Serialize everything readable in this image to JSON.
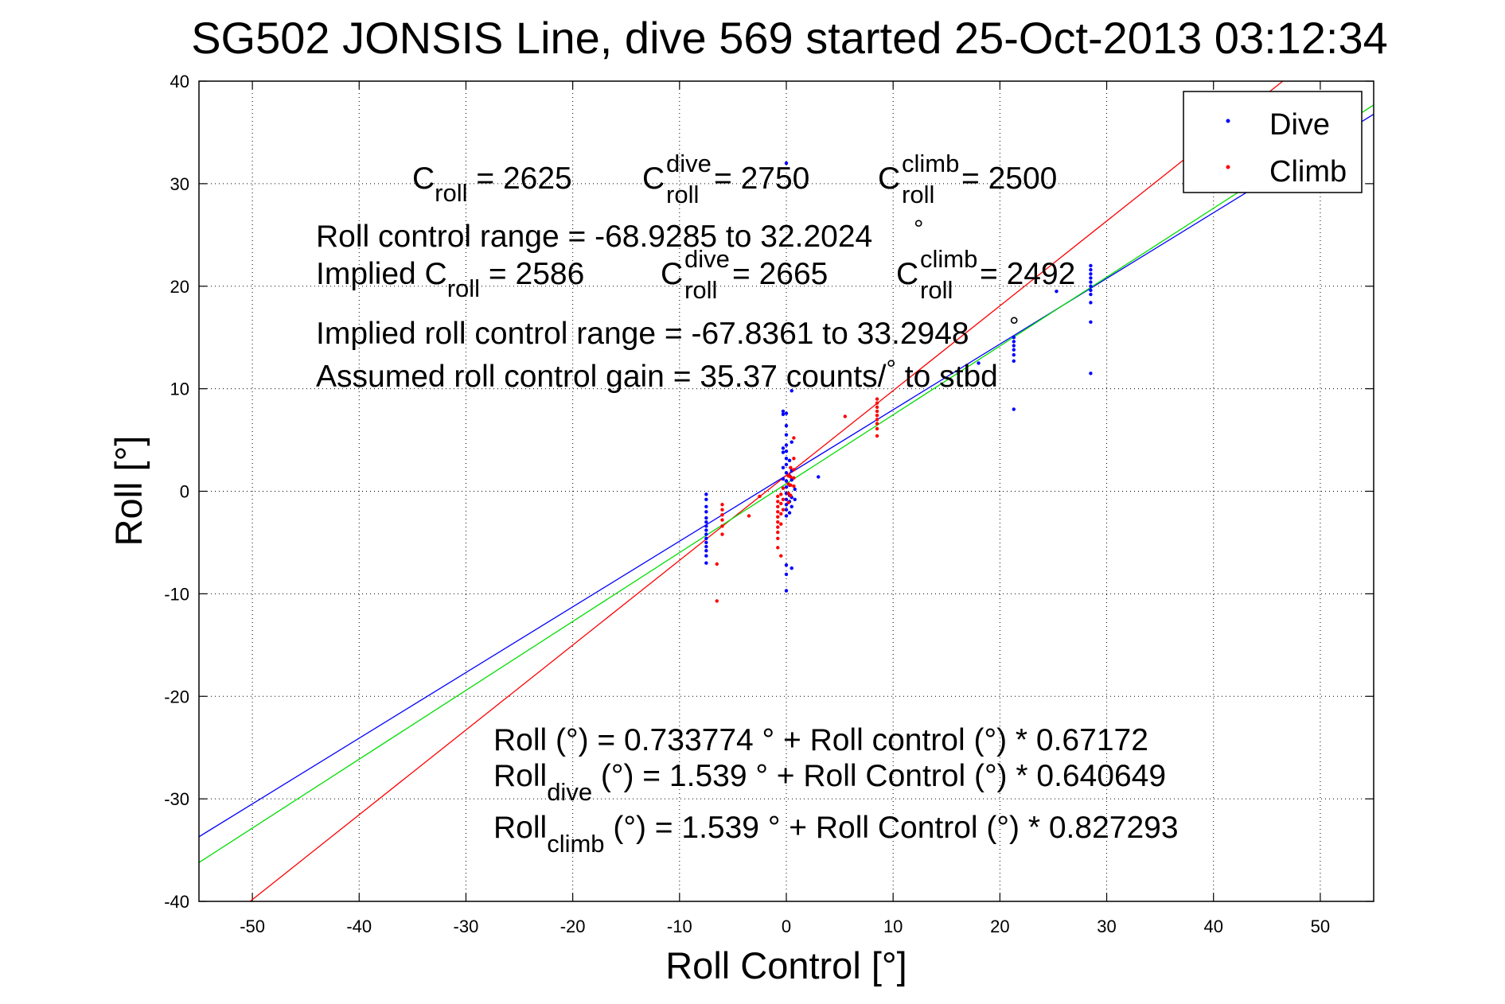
{
  "chart_data": {
    "type": "scatter",
    "title": "SG502 JONSIS Line, dive 569 started 25-Oct-2013 03:12:34",
    "xlabel": "Roll Control [°]",
    "ylabel": "Roll [°]",
    "xlim": [
      -55,
      55
    ],
    "ylim": [
      -40,
      40
    ],
    "xticks": [
      -50,
      -40,
      -30,
      -20,
      -10,
      0,
      10,
      20,
      30,
      40,
      50
    ],
    "yticks": [
      -40,
      -30,
      -20,
      -10,
      0,
      10,
      20,
      30,
      40
    ],
    "xtick_labels": [
      "-50",
      "-40",
      "-30",
      "-20",
      "-10",
      "0",
      "10",
      "20",
      "30",
      "40",
      "50"
    ],
    "ytick_labels": [
      "-40",
      "-30",
      "-20",
      "-10",
      "0",
      "10",
      "20",
      "30",
      "40"
    ],
    "grid": true,
    "legend": {
      "placement": "top-right",
      "entries": [
        "Dive",
        "Climb"
      ]
    },
    "colors": {
      "dive": "#0000ff",
      "climb": "#ff0000",
      "fit_all": "#00dd00"
    },
    "series": [
      {
        "name": "Dive",
        "color": "#0000ff",
        "points": [
          [
            -7.5,
            -0.3
          ],
          [
            -7.5,
            -0.8
          ],
          [
            -7.5,
            -1.5
          ],
          [
            -7.5,
            -2.0
          ],
          [
            -7.5,
            -2.6
          ],
          [
            -7.5,
            -3.0
          ],
          [
            -7.5,
            -3.4
          ],
          [
            -7.5,
            -3.8
          ],
          [
            -7.5,
            -4.2
          ],
          [
            -7.5,
            -4.6
          ],
          [
            -7.5,
            -5.0
          ],
          [
            -7.5,
            -5.4
          ],
          [
            -7.5,
            -5.8
          ],
          [
            -7.5,
            -6.3
          ],
          [
            -7.5,
            -7.0
          ],
          [
            -0.3,
            7.8
          ],
          [
            -0.3,
            7.5
          ],
          [
            -0.3,
            4.2
          ],
          [
            -0.3,
            3.8
          ],
          [
            -0.3,
            2.3
          ],
          [
            -0.3,
            1.2
          ],
          [
            0.0,
            32.0
          ],
          [
            0.0,
            7.6
          ],
          [
            0.0,
            6.4
          ],
          [
            0.0,
            5.5
          ],
          [
            0.0,
            4.5
          ],
          [
            0.0,
            3.9
          ],
          [
            0.0,
            3.2
          ],
          [
            0.0,
            2.6
          ],
          [
            0.0,
            1.8
          ],
          [
            0.0,
            1.0
          ],
          [
            0.0,
            0.4
          ],
          [
            0.0,
            -0.2
          ],
          [
            0.0,
            -0.8
          ],
          [
            0.0,
            -1.3
          ],
          [
            0.0,
            -1.8
          ],
          [
            0.0,
            -2.4
          ],
          [
            0.0,
            -7.2
          ],
          [
            0.0,
            -8.1
          ],
          [
            0.0,
            -9.7
          ],
          [
            0.3,
            3.0
          ],
          [
            0.3,
            1.5
          ],
          [
            0.3,
            0.6
          ],
          [
            0.3,
            -0.4
          ],
          [
            0.3,
            -1.0
          ],
          [
            0.3,
            -2.1
          ],
          [
            0.5,
            9.8
          ],
          [
            0.5,
            4.8
          ],
          [
            0.5,
            2.0
          ],
          [
            0.5,
            1.1
          ],
          [
            0.5,
            -0.6
          ],
          [
            0.5,
            -1.5
          ],
          [
            0.5,
            -7.5
          ],
          [
            0.8,
            0.2
          ],
          [
            0.8,
            -0.8
          ],
          [
            3.0,
            1.4
          ],
          [
            18.0,
            12.5
          ],
          [
            21.3,
            15.0
          ],
          [
            21.3,
            14.6
          ],
          [
            21.3,
            14.2
          ],
          [
            21.3,
            13.8
          ],
          [
            21.3,
            13.3
          ],
          [
            21.3,
            12.7
          ],
          [
            21.3,
            8.0
          ],
          [
            25.3,
            19.5
          ],
          [
            28.5,
            22.0
          ],
          [
            28.5,
            21.6
          ],
          [
            28.5,
            21.2
          ],
          [
            28.5,
            20.8
          ],
          [
            28.5,
            20.4
          ],
          [
            28.5,
            20.0
          ],
          [
            28.5,
            19.6
          ],
          [
            28.5,
            19.2
          ],
          [
            28.5,
            18.4
          ],
          [
            28.5,
            16.5
          ],
          [
            28.5,
            11.5
          ]
        ]
      },
      {
        "name": "Climb",
        "color": "#ff0000",
        "points": [
          [
            -6.5,
            -7.1
          ],
          [
            -6.5,
            -10.7
          ],
          [
            -6.0,
            -1.3
          ],
          [
            -6.0,
            -1.8
          ],
          [
            -6.0,
            -2.3
          ],
          [
            -6.0,
            -2.8
          ],
          [
            -6.0,
            -3.4
          ],
          [
            -6.0,
            -4.2
          ],
          [
            -3.5,
            -2.4
          ],
          [
            -2.5,
            -0.5
          ],
          [
            -0.8,
            -0.5
          ],
          [
            -0.8,
            -1.0
          ],
          [
            -0.8,
            -1.5
          ],
          [
            -0.8,
            -2.0
          ],
          [
            -0.8,
            -2.5
          ],
          [
            -0.8,
            -3.0
          ],
          [
            -0.8,
            -3.5
          ],
          [
            -0.8,
            -4.0
          ],
          [
            -0.8,
            -4.6
          ],
          [
            -0.8,
            -5.5
          ],
          [
            -0.5,
            -0.3
          ],
          [
            -0.5,
            -1.2
          ],
          [
            -0.5,
            -2.2
          ],
          [
            -0.5,
            -3.2
          ],
          [
            -0.5,
            -6.3
          ],
          [
            -0.3,
            0.3
          ],
          [
            -0.3,
            -0.8
          ],
          [
            -0.3,
            -1.8
          ],
          [
            0.2,
            1.5
          ],
          [
            0.2,
            0.7
          ],
          [
            0.2,
            -0.2
          ],
          [
            0.2,
            -1.1
          ],
          [
            0.4,
            2.3
          ],
          [
            0.4,
            1.4
          ],
          [
            0.4,
            0.6
          ],
          [
            0.4,
            -0.4
          ],
          [
            0.7,
            5.2
          ],
          [
            0.7,
            3.2
          ],
          [
            0.7,
            2.1
          ],
          [
            0.7,
            1.3
          ],
          [
            0.7,
            0.5
          ],
          [
            5.5,
            7.3
          ],
          [
            8.5,
            9.0
          ],
          [
            8.5,
            8.6
          ],
          [
            8.5,
            8.2
          ],
          [
            8.5,
            7.8
          ],
          [
            8.5,
            7.4
          ],
          [
            8.5,
            7.0
          ],
          [
            8.5,
            6.6
          ],
          [
            8.5,
            6.1
          ],
          [
            8.5,
            5.4
          ]
        ]
      }
    ],
    "fit_lines": [
      {
        "name": "Dive fit",
        "color": "#0000ff",
        "intercept": 1.539,
        "slope": 0.640649
      },
      {
        "name": "Climb fit",
        "color": "#ff0000",
        "intercept": 1.539,
        "slope": 0.827293
      },
      {
        "name": "Combined fit",
        "color": "#00dd00",
        "intercept": 0.733774,
        "slope": 0.67172
      }
    ],
    "annotations": {
      "c_roll": {
        "main": "C",
        "sub": "roll",
        "rest": " = 2625"
      },
      "c_roll_dive": {
        "main": "C",
        "sup": "dive",
        "sub": "roll",
        "rest": " = 2750"
      },
      "c_roll_climb": {
        "main": "C",
        "sup": "climb",
        "sub": "roll",
        "rest": " = 2500"
      },
      "range": "Roll control range = -68.9285 to 32.2024",
      "range_deg": "°",
      "implied_main": "Implied C",
      "implied_sub": "roll",
      "implied_rest": " = 2586",
      "implied_dive": {
        "main": "C",
        "sup": "dive",
        "sub": "roll",
        "rest": " = 2665"
      },
      "implied_climb": {
        "main": "C",
        "sup": "climb",
        "sub": "roll",
        "rest": " = 2492"
      },
      "implied_range": "Implied roll control range = -67.8361 to 33.2948",
      "implied_range_deg": "°",
      "gain_a": "Assumed roll control gain = 35.37 counts/",
      "gain_deg": "°",
      "gain_b": " to stbd",
      "eq_all": "Roll (°) = 0.733774 ° + Roll control (°) * 0.67172",
      "eq_dive_main": "Roll",
      "eq_dive_sub": "dive",
      "eq_dive_rest": " (°) = 1.539 ° + Roll Control (°) * 0.640649",
      "eq_climb_main": "Roll",
      "eq_climb_sub": "climb",
      "eq_climb_rest": " (°) = 1.539 ° + Roll Control (°) * 0.827293"
    }
  }
}
